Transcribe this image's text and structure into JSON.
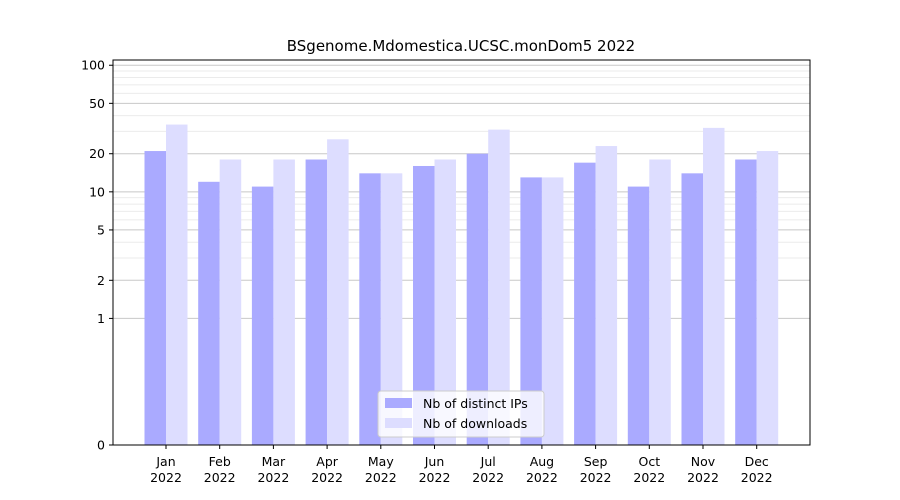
{
  "chart_data": {
    "type": "bar",
    "title": "BSgenome.Mdomestica.UCSC.monDom5 2022",
    "xlabel": "",
    "ylabel": "",
    "y_scale": "symlog",
    "ylim": [
      0,
      110
    ],
    "y_ticks": [
      0,
      1,
      2,
      5,
      10,
      20,
      50,
      100
    ],
    "categories": [
      [
        "Jan",
        "2022"
      ],
      [
        "Feb",
        "2022"
      ],
      [
        "Mar",
        "2022"
      ],
      [
        "Apr",
        "2022"
      ],
      [
        "May",
        "2022"
      ],
      [
        "Jun",
        "2022"
      ],
      [
        "Jul",
        "2022"
      ],
      [
        "Aug",
        "2022"
      ],
      [
        "Sep",
        "2022"
      ],
      [
        "Oct",
        "2022"
      ],
      [
        "Nov",
        "2022"
      ],
      [
        "Dec",
        "2022"
      ]
    ],
    "series": [
      {
        "name": "Nb of distinct IPs",
        "color": "#aaaaff",
        "values": [
          21,
          12,
          11,
          18,
          14,
          16,
          20,
          13,
          17,
          11,
          14,
          18
        ]
      },
      {
        "name": "Nb of downloads",
        "color": "#ddddff",
        "values": [
          34,
          18,
          18,
          26,
          14,
          18,
          31,
          13,
          23,
          18,
          32,
          21
        ]
      }
    ],
    "grid": "y",
    "legend_position": "lower-center"
  }
}
